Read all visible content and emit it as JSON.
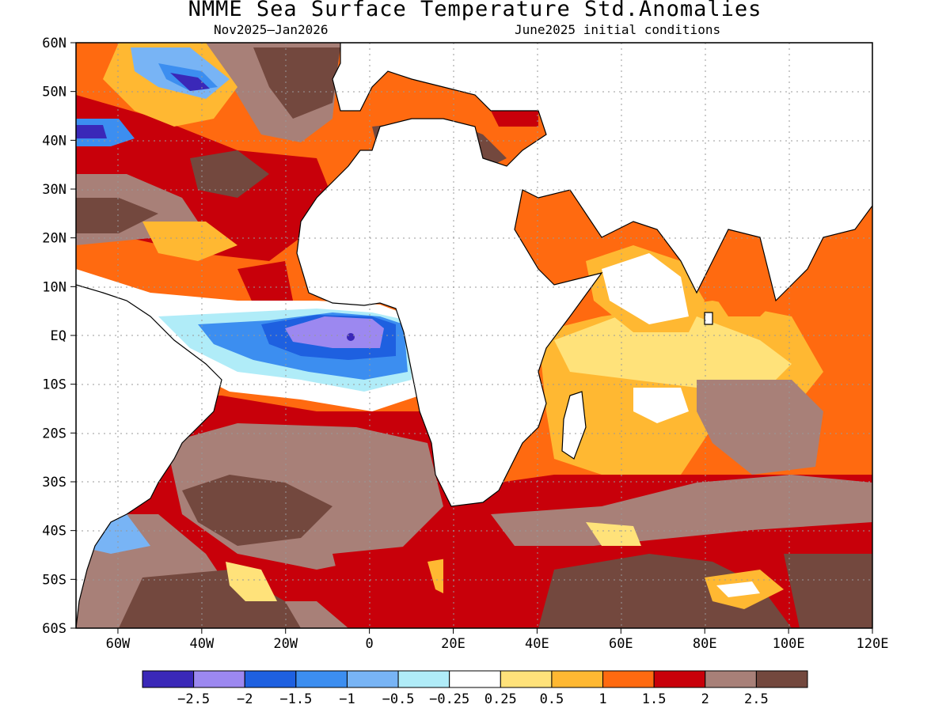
{
  "title": "NMME Sea Surface Temperature Std.Anomalies",
  "subtitle_left": "Nov2025–Jan2026",
  "subtitle_right": "June2025 initial conditions",
  "map": {
    "lon_range": [
      -70,
      120
    ],
    "lat_range": [
      -60,
      60
    ],
    "lat_ticks": [
      "60N",
      "50N",
      "40N",
      "30N",
      "20N",
      "10N",
      "EQ",
      "10S",
      "20S",
      "30S",
      "40S",
      "50S",
      "60S"
    ],
    "lon_ticks": [
      "60W",
      "40W",
      "20W",
      "0",
      "20E",
      "40E",
      "60E",
      "80E",
      "100E",
      "120E"
    ],
    "land_color": "#ffffff",
    "grid": true
  },
  "colorbar": {
    "colors": [
      "#3a28b8",
      "#9c88f0",
      "#1e60e0",
      "#3c8ef0",
      "#78b4f5",
      "#b0ecf8",
      "#ffffff",
      "#ffe27a",
      "#ffb832",
      "#ff6a10",
      "#c8000a",
      "#a88078",
      "#73483e"
    ],
    "labels": [
      "−2.5",
      "−2",
      "−1.5",
      "−1",
      "−0.5",
      "−0.25",
      "0.25",
      "0.5",
      "1",
      "1.5",
      "2",
      "2.5"
    ]
  }
}
